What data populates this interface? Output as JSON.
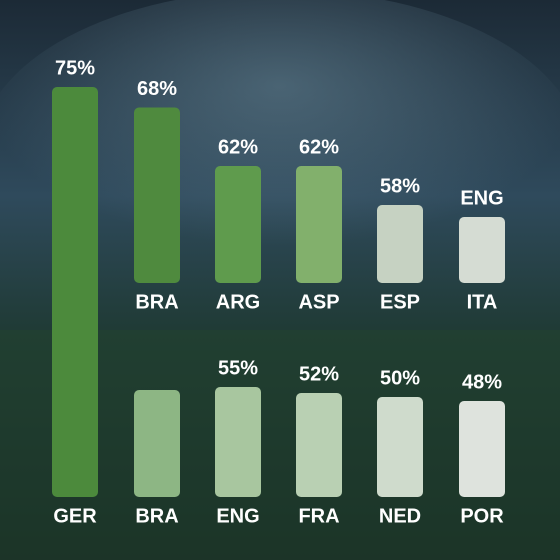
{
  "chart_data": [
    {
      "type": "bar",
      "categories": [
        "GER"
      ],
      "values": [
        75
      ],
      "value_labels": [
        "75%"
      ],
      "colors": [
        "#4c8a3c"
      ],
      "ylim": [
        0,
        75
      ]
    },
    {
      "type": "bar",
      "categories": [
        "BRA",
        "ARG",
        "ASP",
        "ESP",
        "ITA"
      ],
      "values": [
        68,
        62,
        62,
        58,
        null
      ],
      "value_labels": [
        "68%",
        "62%",
        "62%",
        "58%",
        "ENG"
      ],
      "colors": [
        "#4f8a3e",
        "#5f9b4d",
        "#82b06c",
        "#c6d2c2",
        "#d5dcd3"
      ],
      "ylim": [
        50,
        70
      ]
    },
    {
      "type": "bar",
      "categories": [
        "BRA",
        "ENG",
        "FRA",
        "NED",
        "POR"
      ],
      "values": [
        null,
        55,
        52,
        50,
        48
      ],
      "value_labels": [
        null,
        "55%",
        "52%",
        "50%",
        "48%"
      ],
      "colors": [
        "#8db684",
        "#a8c69f",
        "#b9d0b3",
        "#cfdbcc",
        "#dee3dd"
      ],
      "ylim": [
        0,
        55
      ]
    }
  ]
}
